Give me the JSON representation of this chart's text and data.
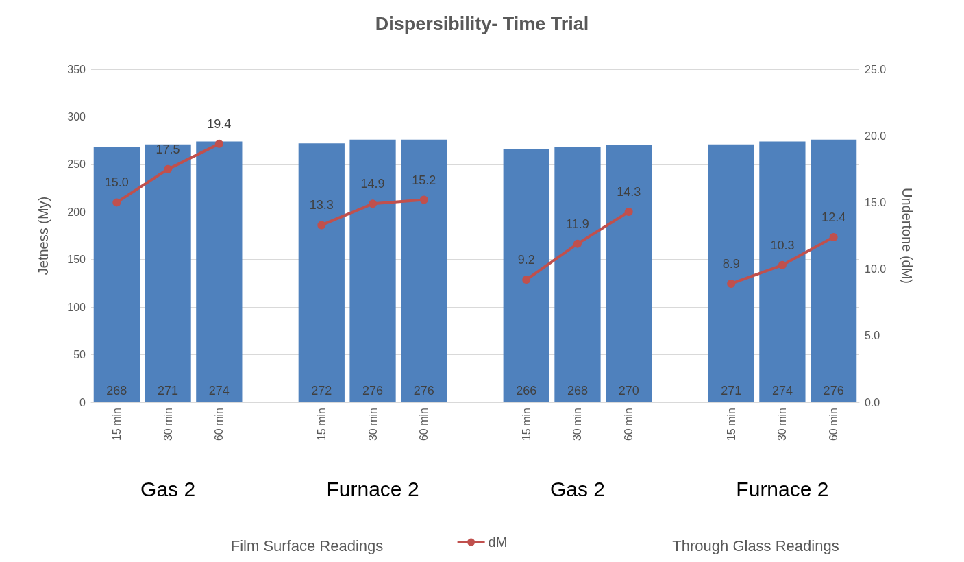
{
  "chart_data": {
    "type": "bar",
    "title": "Dispersibility- Time Trial",
    "ylabel": "Jetness (My)",
    "y2label": "Undertone (dM)",
    "categories": [
      "15 min",
      "30 min",
      "60 min",
      null,
      "15 min",
      "30 min",
      "60 min",
      null,
      "15 min",
      "30 min",
      "60 min",
      null,
      "15 min",
      "30 min",
      "60 min"
    ],
    "series": [
      {
        "color": "#4f81bd",
        "values": [
          268,
          271,
          274,
          null,
          272,
          276,
          276,
          null,
          266,
          268,
          270,
          null,
          271,
          274,
          276
        ],
        "value_labels": [
          "268",
          "271",
          "274",
          null,
          "272",
          "276",
          "276",
          null,
          "266",
          "268",
          "270",
          null,
          "271",
          "274",
          "276"
        ]
      },
      {
        "type": "line",
        "name": "dM",
        "axis": "y2",
        "color": "#c0504d",
        "values": [
          15.0,
          17.5,
          19.4,
          null,
          13.3,
          14.9,
          15.2,
          null,
          9.2,
          11.9,
          14.3,
          null,
          8.9,
          10.3,
          12.4
        ],
        "value_labels": [
          "15.0",
          "17.5",
          "19.4",
          null,
          "13.3",
          "14.9",
          "15.2",
          null,
          "9.2",
          "11.9",
          "14.3",
          null,
          "8.9",
          "10.3",
          "12.4"
        ]
      }
    ],
    "annotations": [
      "Gas 2",
      "Furnace 2",
      "Gas 2",
      "Furnace 2",
      "Film Surface Readings",
      "Through Glass Readings"
    ],
    "ylim": [
      0,
      350
    ],
    "yticks": [
      0,
      50,
      100,
      150,
      200,
      250,
      300,
      350
    ],
    "y2lim": [
      0,
      25
    ],
    "y2ticks": [
      {
        "value": 0,
        "label": "0.0"
      },
      {
        "value": 5,
        "label": "5.0"
      },
      {
        "value": 10,
        "label": "10.0"
      },
      {
        "value": 15,
        "label": "15.0"
      },
      {
        "value": 20,
        "label": "20.0"
      },
      {
        "value": 25,
        "label": "25.0"
      }
    ],
    "grid": "y",
    "legend": "bottom",
    "marker": "circle"
  }
}
